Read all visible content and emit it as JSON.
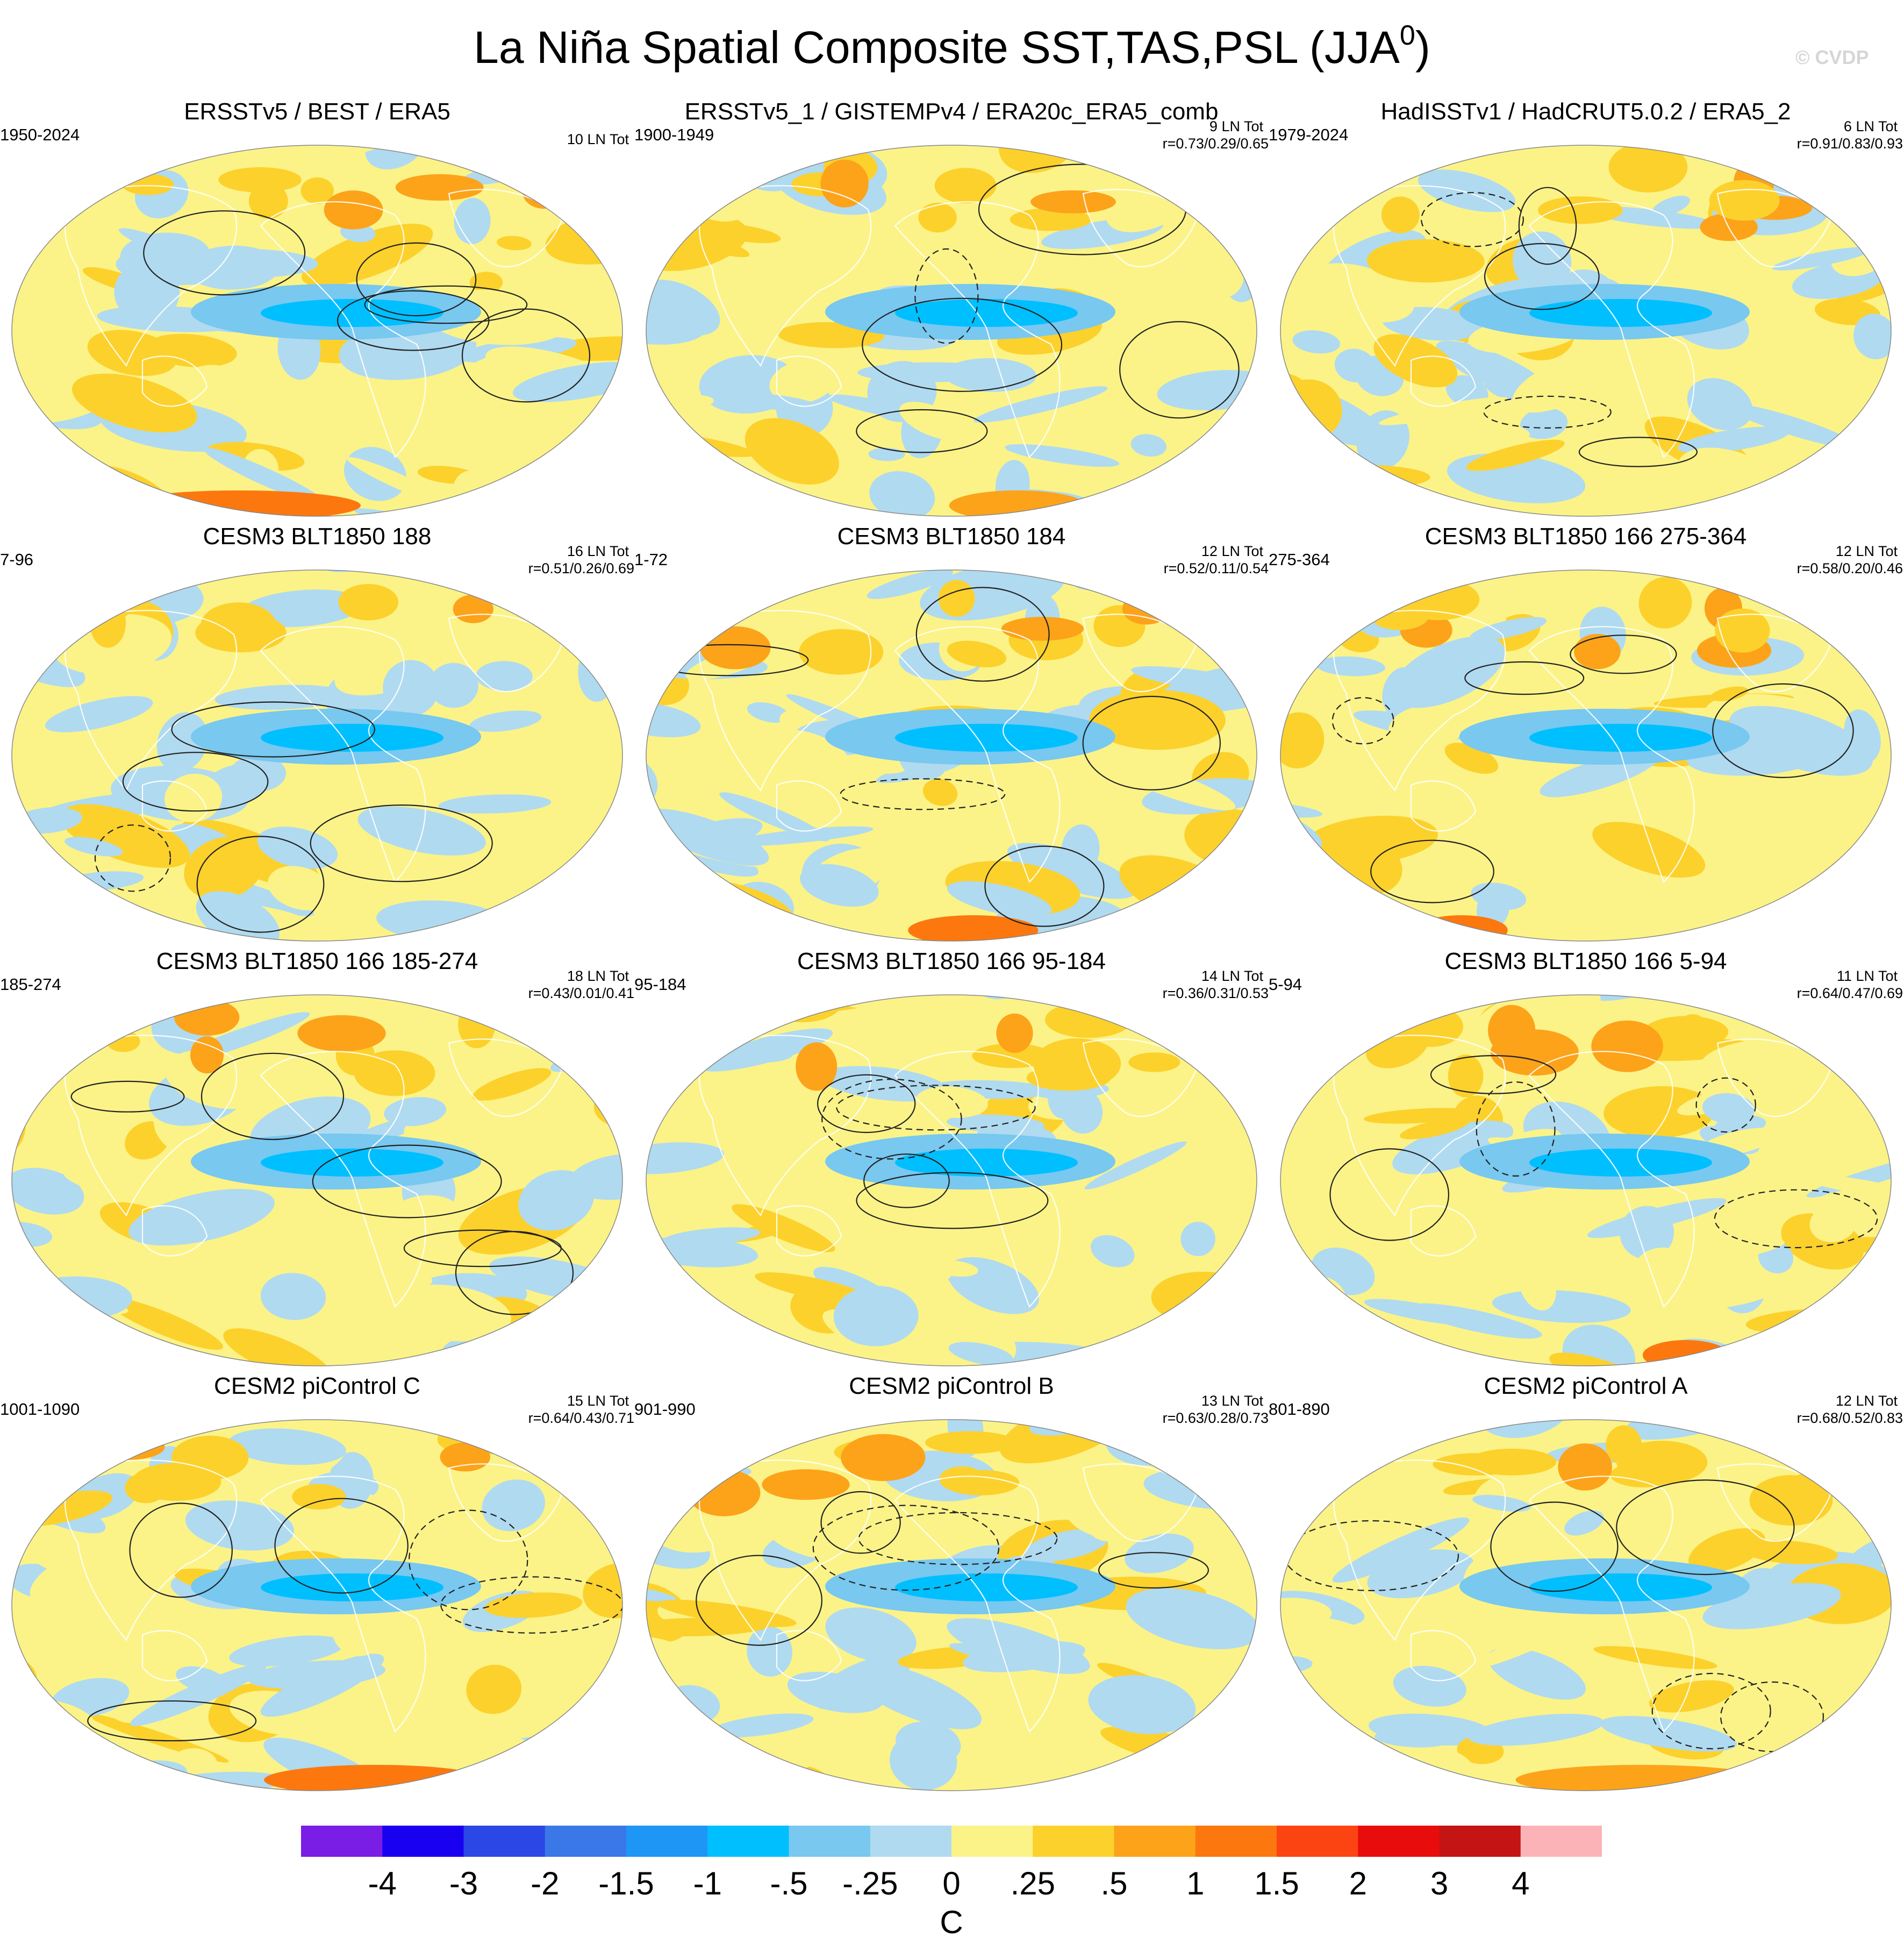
{
  "figure": {
    "title_main": "La Niña Spatial Composite SST,TAS,PSL (JJA",
    "title_superscript": "0",
    "title_close": ")",
    "watermark": "© CVDP"
  },
  "panels": [
    {
      "title": "ERSSTv5 / BEST / ERA5",
      "years": "1950-2024",
      "count": "10 LN Tot",
      "corr": null,
      "blue": 0.5,
      "orange": 0.22,
      "seed": 11
    },
    {
      "title": "ERSSTv5_1 / GISTEMPv4 / ERA20c_ERA5_comb",
      "years": "1900-1949",
      "count": "9 LN Tot",
      "corr": "r=0.73/0.29/0.65",
      "blue": 0.52,
      "orange": 0.18,
      "seed": 23
    },
    {
      "title": "HadISSTv1 / HadCRUT5.0.2 / ERA5_2",
      "years": "1979-2024",
      "count": "6 LN Tot",
      "corr": "r=0.91/0.83/0.93",
      "blue": 0.5,
      "orange": 0.24,
      "seed": 37
    },
    {
      "title": "CESM3 BLT1850 188",
      "years": "7-96",
      "count": "16 LN Tot",
      "corr": "r=0.51/0.26/0.69",
      "blue": 0.48,
      "orange": 0.14,
      "seed": 41
    },
    {
      "title": "CESM3 BLT1850 184",
      "years": "1-72",
      "count": "12 LN Tot",
      "corr": "r=0.52/0.11/0.54",
      "blue": 0.46,
      "orange": 0.16,
      "seed": 53
    },
    {
      "title": "CESM3 BLT1850 166 275-364",
      "years": "275-364",
      "count": "12 LN Tot",
      "corr": "r=0.58/0.20/0.46",
      "blue": 0.48,
      "orange": 0.16,
      "seed": 67
    },
    {
      "title": "CESM3 BLT1850 166 185-274",
      "years": "185-274",
      "count": "18 LN Tot",
      "corr": "r=0.43/0.01/0.41",
      "blue": 0.46,
      "orange": 0.14,
      "seed": 71
    },
    {
      "title": "CESM3 BLT1850 166 95-184",
      "years": "95-184",
      "count": "14 LN Tot",
      "corr": "r=0.36/0.31/0.53",
      "blue": 0.46,
      "orange": 0.2,
      "seed": 83
    },
    {
      "title": "CESM3 BLT1850 166 5-94",
      "years": "5-94",
      "count": "11 LN Tot",
      "corr": "r=0.64/0.47/0.69",
      "blue": 0.5,
      "orange": 0.16,
      "seed": 97
    },
    {
      "title": "CESM2 piControl C",
      "years": "1001-1090",
      "count": "15 LN Tot",
      "corr": "r=0.64/0.43/0.71",
      "blue": 0.4,
      "orange": 0.18,
      "seed": 101
    },
    {
      "title": "CESM2 piControl B",
      "years": "901-990",
      "count": "13 LN Tot",
      "corr": "r=0.63/0.28/0.73",
      "blue": 0.46,
      "orange": 0.18,
      "seed": 113
    },
    {
      "title": "CESM2 piControl A",
      "years": "801-890",
      "count": "12 LN Tot",
      "corr": "r=0.68/0.52/0.83",
      "blue": 0.4,
      "orange": 0.22,
      "seed": 127
    }
  ],
  "colorbar": {
    "units": "C",
    "tick_labels": [
      "-4",
      "-3",
      "-2",
      "-1.5",
      "-1",
      "-.5",
      "-.25",
      "0",
      ".25",
      ".5",
      "1",
      "1.5",
      "2",
      "3",
      "4"
    ],
    "colors": [
      "#7a1ee6",
      "#1a00f0",
      "#2b48e6",
      "#3a78e8",
      "#1e96f5",
      "#00bfff",
      "#78c8f0",
      "#b0daf0",
      "#fbf388",
      "#fcd12c",
      "#fca31a",
      "#fc780e",
      "#fc4412",
      "#e80c0c",
      "#c41414",
      "#fcb3b8"
    ]
  }
}
